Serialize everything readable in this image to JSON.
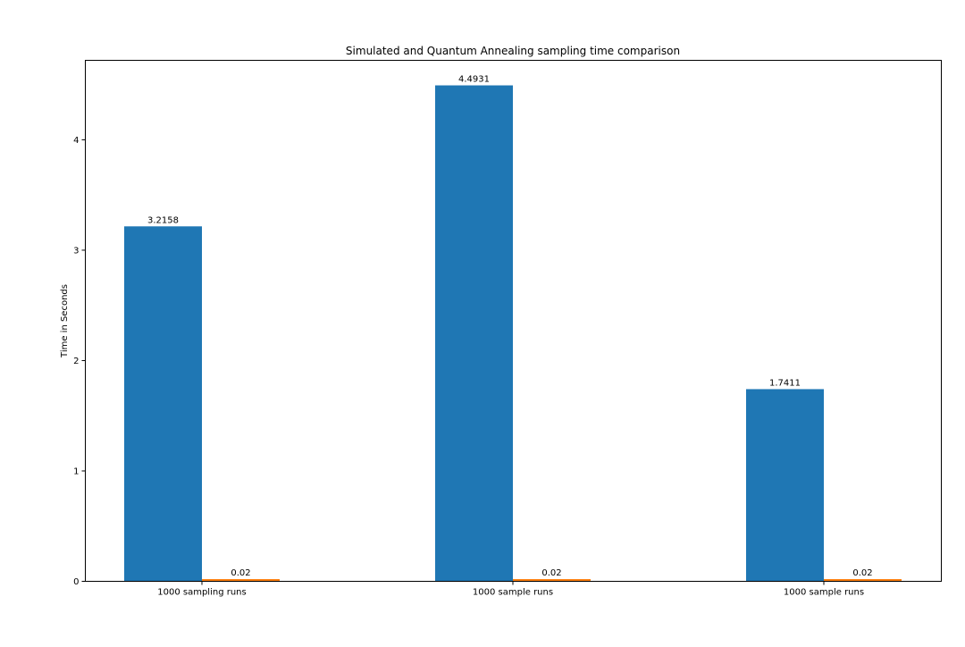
{
  "chart_data": {
    "type": "bar",
    "title": "Simulated and Quantum Annealing sampling time comparison",
    "xlabel": "",
    "ylabel": "Time in Seconds",
    "categories": [
      "1000 sampling runs",
      "1000 sample runs",
      "1000 sample runs"
    ],
    "series": [
      {
        "values": [
          3.2158,
          4.4931,
          1.7411
        ],
        "labels": [
          "3.2158",
          "4.4931",
          "1.7411"
        ],
        "color": "#1f77b4"
      },
      {
        "values": [
          0.02,
          0.02,
          0.02
        ],
        "labels": [
          "0.02",
          "0.02",
          "0.02"
        ],
        "color": "#ff7f0e"
      }
    ],
    "yticks": [
      0,
      1,
      2,
      3,
      4
    ],
    "ylim": [
      0,
      4.72
    ],
    "grid": false,
    "legend": "none"
  }
}
